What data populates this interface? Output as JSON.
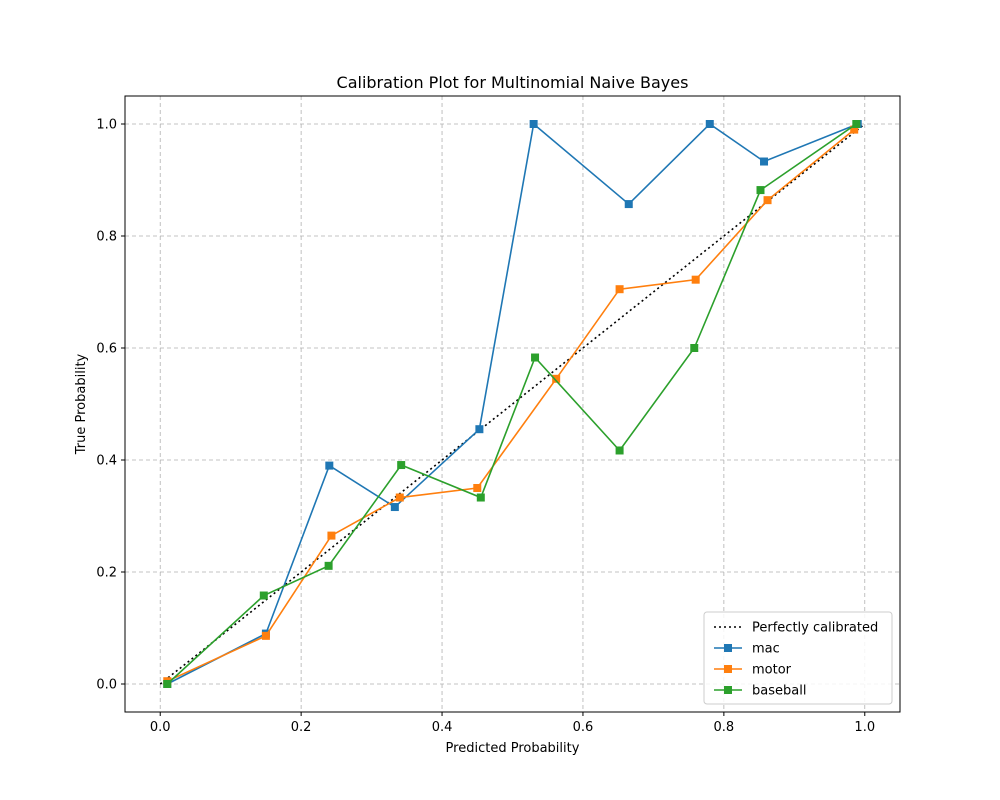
{
  "chart_data": {
    "type": "line",
    "title": "Calibration Plot for Multinomial Naive Bayes",
    "xlabel": "Predicted Probability",
    "ylabel": "True Probability",
    "xlim": [
      -0.05,
      1.05
    ],
    "ylim": [
      -0.05,
      1.05
    ],
    "xticks": [
      0.0,
      0.2,
      0.4,
      0.6,
      0.8,
      1.0
    ],
    "yticks": [
      0.0,
      0.2,
      0.4,
      0.6,
      0.8,
      1.0
    ],
    "xtick_labels": [
      "0.0",
      "0.2",
      "0.4",
      "0.6",
      "0.8",
      "1.0"
    ],
    "ytick_labels": [
      "0.0",
      "0.2",
      "0.4",
      "0.6",
      "0.8",
      "1.0"
    ],
    "grid": true,
    "legend_position": "bottom-right",
    "reference": {
      "name": "Perfectly calibrated",
      "x": [
        0,
        1
      ],
      "y": [
        0,
        1
      ],
      "color": "#000000",
      "style": "dotted"
    },
    "series": [
      {
        "name": "mac",
        "color": "#1f77b4",
        "x": [
          0.01,
          0.15,
          0.24,
          0.333,
          0.453,
          0.53,
          0.665,
          0.78,
          0.857,
          0.99
        ],
        "y": [
          0.0,
          0.09,
          0.39,
          0.316,
          0.455,
          1.0,
          0.857,
          1.0,
          0.933,
          1.0
        ]
      },
      {
        "name": "motor",
        "color": "#ff7f0e",
        "x": [
          0.01,
          0.15,
          0.243,
          0.34,
          0.45,
          0.562,
          0.652,
          0.76,
          0.862,
          0.985
        ],
        "y": [
          0.005,
          0.086,
          0.265,
          0.333,
          0.35,
          0.545,
          0.705,
          0.722,
          0.864,
          0.99
        ]
      },
      {
        "name": "baseball",
        "color": "#2ca02c",
        "x": [
          0.01,
          0.147,
          0.239,
          0.342,
          0.455,
          0.532,
          0.652,
          0.758,
          0.852,
          0.988
        ],
        "y": [
          0.0,
          0.158,
          0.211,
          0.391,
          0.333,
          0.583,
          0.417,
          0.6,
          0.882,
          1.0
        ]
      }
    ]
  }
}
